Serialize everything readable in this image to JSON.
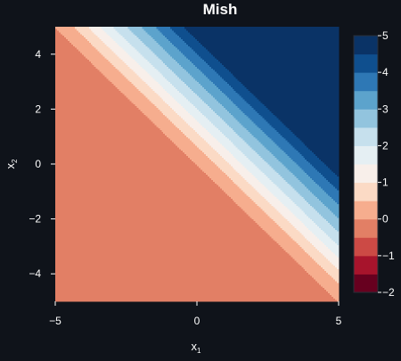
{
  "chart_data": {
    "type": "heatmap",
    "subtype": "filled-contour",
    "title": "Mish",
    "xlabel": "x",
    "xlabel_subscript": "1",
    "ylabel": "x",
    "ylabel_subscript": "2",
    "xlim": [
      -5,
      5
    ],
    "ylim": [
      -5,
      5
    ],
    "xticks": [
      -5,
      0,
      5
    ],
    "yticks": [
      -4,
      -2,
      0,
      2,
      4
    ],
    "function": "mish(x1 + x2)",
    "contour_levels": [
      -2.0,
      -1.5,
      -1.0,
      -0.5,
      0.0,
      0.5,
      1.0,
      1.5,
      2.0,
      2.5,
      3.0,
      3.5,
      4.0,
      4.5,
      5.0
    ],
    "colors": [
      "#67001f",
      "#a7142c",
      "#cc4a45",
      "#e27f65",
      "#f6ad8e",
      "#fbdac5",
      "#f8efea",
      "#e5eff3",
      "#c6e0ed",
      "#92c4de",
      "#5ca3cc",
      "#2e78b5",
      "#0f4f8e",
      "#0a3366"
    ],
    "colorbar": {
      "ticks": [
        -2,
        -1,
        0,
        1,
        2,
        3,
        4,
        5
      ],
      "tick_labels": [
        "−2",
        "−1",
        "0",
        "1",
        "2",
        "3",
        "4",
        "5"
      ]
    },
    "grid": false,
    "legend": "none"
  },
  "tick_labels": {
    "x": [
      "−5",
      "0",
      "5"
    ],
    "y": [
      "−4",
      "−2",
      "0",
      "2",
      "4"
    ]
  }
}
